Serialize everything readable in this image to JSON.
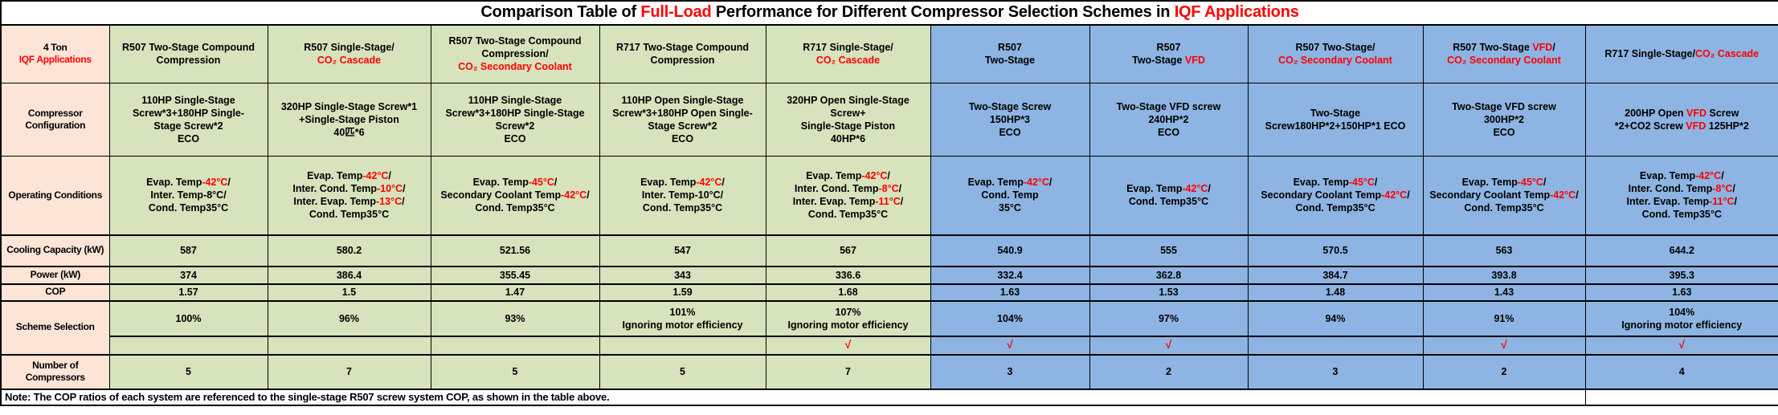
{
  "title": {
    "segments": [
      {
        "t": "Comparison Table of "
      },
      {
        "t": "Full-Load",
        "r": 1
      },
      {
        "t": " Performance for Different Compressor Selection Schemes in "
      },
      {
        "t": "IQF Applications",
        "r": 1
      }
    ]
  },
  "corner": {
    "segments": [
      {
        "t": "4 Ton\n"
      },
      {
        "t": "IQF Applications",
        "r": 1
      }
    ]
  },
  "row_labels": {
    "config": [
      {
        "t": "Compressor\nConfiguration"
      }
    ],
    "conditions": [
      {
        "t": "Operating Conditions"
      }
    ],
    "cooling": [
      {
        "t": "Cooling Capacity (kW)"
      }
    ],
    "power": [
      {
        "t": "Power (kW)"
      }
    ],
    "cop": [
      {
        "t": "COP"
      }
    ],
    "selection": [
      {
        "t": "Scheme Selection"
      }
    ],
    "compressors": [
      {
        "t": "Number of\nCompressors"
      }
    ]
  },
  "check_mark": "√",
  "colors": {
    "label_bg": "#fce4d6",
    "green_bg": "#d6e3bc",
    "blue_bg": "#8db4e2",
    "accent_red": "#ff0000",
    "border": "#000000"
  },
  "note": [
    {
      "t": "Note: The COP ratios of each system are referenced to the single-stage R507 screw system COP, as shown in the table above."
    }
  ],
  "columns": [
    {
      "theme": "green",
      "header": [
        {
          "t": "R507 Two-Stage Compound\nCompression"
        }
      ],
      "config": [
        {
          "t": "110HP Single-Stage\nScrew*3+180HP Single-\nStage Screw*2\nECO"
        }
      ],
      "conditions": [
        {
          "t": "Evap. Temp"
        },
        {
          "t": "-42°C",
          "r": 1
        },
        {
          "t": "/\nInter. Temp-8°C/\nCond. Temp35°C"
        }
      ],
      "cooling": [
        {
          "t": "587"
        }
      ],
      "power": [
        {
          "t": "374"
        }
      ],
      "cop": [
        {
          "t": "1.57"
        }
      ],
      "selection": [
        {
          "t": "100%"
        }
      ],
      "selected": false,
      "compressors": [
        {
          "t": "5"
        }
      ]
    },
    {
      "theme": "green",
      "header": [
        {
          "t": "R507 Single-Stage/\n"
        },
        {
          "t": "CO₂ Cascade",
          "r": 1
        }
      ],
      "config": [
        {
          "t": "320HP Single-Stage Screw*1\n+Single-Stage Piston\n40匹*6"
        }
      ],
      "conditions": [
        {
          "t": "Evap. Temp"
        },
        {
          "t": "-42°C",
          "r": 1
        },
        {
          "t": "/\nInter. Cond. Temp"
        },
        {
          "t": "-10°C",
          "r": 1
        },
        {
          "t": "/\nInter. Evap. Temp"
        },
        {
          "t": "-13°C",
          "r": 1
        },
        {
          "t": "/\nCond. Temp35°C"
        }
      ],
      "cooling": [
        {
          "t": "580.2"
        }
      ],
      "power": [
        {
          "t": "386.4"
        }
      ],
      "cop": [
        {
          "t": "1.5"
        }
      ],
      "selection": [
        {
          "t": "96%"
        }
      ],
      "selected": false,
      "compressors": [
        {
          "t": "7"
        }
      ]
    },
    {
      "theme": "green",
      "header": [
        {
          "t": "R507 Two-Stage Compound\nCompression/\n"
        },
        {
          "t": "CO₂ Secondary Coolant",
          "r": 1
        }
      ],
      "config": [
        {
          "t": "110HP Single-Stage\nScrew*3+180HP Single-Stage\nScrew*2\nECO"
        }
      ],
      "conditions": [
        {
          "t": "Evap. Temp"
        },
        {
          "t": "-45°C",
          "r": 1
        },
        {
          "t": "/\nSecondary Coolant Temp"
        },
        {
          "t": "-42°C",
          "r": 1
        },
        {
          "t": "/\nCond. Temp35°C"
        }
      ],
      "cooling": [
        {
          "t": "521.56"
        }
      ],
      "power": [
        {
          "t": "355.45"
        }
      ],
      "cop": [
        {
          "t": "1.47"
        }
      ],
      "selection": [
        {
          "t": "93%"
        }
      ],
      "selected": false,
      "compressors": [
        {
          "t": "5"
        }
      ]
    },
    {
      "theme": "green",
      "header": [
        {
          "t": "R717 Two-Stage Compound\nCompression"
        }
      ],
      "config": [
        {
          "t": "110HP Open Single-Stage\nScrew*3+180HP Open Single-\nStage Screw*2\nECO"
        }
      ],
      "conditions": [
        {
          "t": "Evap. Temp"
        },
        {
          "t": "-42°C",
          "r": 1
        },
        {
          "t": "/\nInter. Temp-10°C/\nCond. Temp35°C"
        }
      ],
      "cooling": [
        {
          "t": "547"
        }
      ],
      "power": [
        {
          "t": "343"
        }
      ],
      "cop": [
        {
          "t": "1.59"
        }
      ],
      "selection": [
        {
          "t": "101%\nIgnoring motor efficiency"
        }
      ],
      "selected": false,
      "compressors": [
        {
          "t": "5"
        }
      ]
    },
    {
      "theme": "green",
      "header": [
        {
          "t": "R717 Single-Stage/\n"
        },
        {
          "t": "CO₂ Cascade",
          "r": 1
        }
      ],
      "config": [
        {
          "t": "320HP Open Single-Stage\nScrew+\nSingle-Stage Piston\n40HP*6"
        }
      ],
      "conditions": [
        {
          "t": "Evap. Temp"
        },
        {
          "t": "-42°C",
          "r": 1
        },
        {
          "t": "/\nInter. Cond. Temp"
        },
        {
          "t": "-8°C",
          "r": 1
        },
        {
          "t": "/\nInter. Evap. Temp"
        },
        {
          "t": "-11°C",
          "r": 1
        },
        {
          "t": "/\nCond. Temp35°C"
        }
      ],
      "cooling": [
        {
          "t": "567"
        }
      ],
      "power": [
        {
          "t": "336.6"
        }
      ],
      "cop": [
        {
          "t": "1.68"
        }
      ],
      "selection": [
        {
          "t": "107%\nIgnoring motor efficiency"
        }
      ],
      "selected": true,
      "compressors": [
        {
          "t": "7"
        }
      ]
    },
    {
      "theme": "blue",
      "header": [
        {
          "t": "R507\nTwo-Stage"
        }
      ],
      "config": [
        {
          "t": "Two-Stage Screw\n150HP*3\nECO"
        }
      ],
      "conditions": [
        {
          "t": "Evap. Temp"
        },
        {
          "t": "-42°C",
          "r": 1
        },
        {
          "t": "/\nCond. Temp\n35°C"
        }
      ],
      "cooling": [
        {
          "t": "540.9"
        }
      ],
      "power": [
        {
          "t": "332.4"
        }
      ],
      "cop": [
        {
          "t": "1.63"
        }
      ],
      "selection": [
        {
          "t": "104%"
        }
      ],
      "selected": true,
      "compressors": [
        {
          "t": "3"
        }
      ]
    },
    {
      "theme": "blue",
      "header": [
        {
          "t": "R507\nTwo-Stage "
        },
        {
          "t": "VFD",
          "r": 1
        }
      ],
      "config": [
        {
          "t": "Two-Stage VFD screw\n240HP*2\nECO"
        }
      ],
      "conditions": [
        {
          "t": "Evap. Temp"
        },
        {
          "t": "-42°C",
          "r": 1
        },
        {
          "t": "/\nCond. Temp35°C"
        }
      ],
      "cooling": [
        {
          "t": "555"
        }
      ],
      "power": [
        {
          "t": "362.8"
        }
      ],
      "cop": [
        {
          "t": "1.53"
        }
      ],
      "selection": [
        {
          "t": "97%"
        }
      ],
      "selected": true,
      "compressors": [
        {
          "t": "2"
        }
      ]
    },
    {
      "theme": "blue",
      "header": [
        {
          "t": "R507 Two-Stage/\n"
        },
        {
          "t": "CO₂ Secondary Coolant",
          "r": 1
        }
      ],
      "config": [
        {
          "t": "Two-Stage\nScrew180HP*2+150HP*1 ECO"
        }
      ],
      "conditions": [
        {
          "t": "Evap. Temp"
        },
        {
          "t": "-45°C",
          "r": 1
        },
        {
          "t": "/\nSecondary Coolant Temp"
        },
        {
          "t": "-42°C",
          "r": 1
        },
        {
          "t": "/\nCond. Temp35°C"
        }
      ],
      "cooling": [
        {
          "t": "570.5"
        }
      ],
      "power": [
        {
          "t": "384.7"
        }
      ],
      "cop": [
        {
          "t": "1.48"
        }
      ],
      "selection": [
        {
          "t": "94%"
        }
      ],
      "selected": false,
      "compressors": [
        {
          "t": "3"
        }
      ]
    },
    {
      "theme": "blue",
      "header": [
        {
          "t": "R507 Two-Stage "
        },
        {
          "t": "VFD",
          "r": 1
        },
        {
          "t": "/\n"
        },
        {
          "t": "CO₂ Secondary Coolant",
          "r": 1
        }
      ],
      "config": [
        {
          "t": "Two-Stage VFD screw\n300HP*2\nECO"
        }
      ],
      "conditions": [
        {
          "t": "Evap. Temp"
        },
        {
          "t": "-45°C",
          "r": 1
        },
        {
          "t": "/\nSecondary Coolant Temp"
        },
        {
          "t": "-42°C",
          "r": 1
        },
        {
          "t": "/\nCond. Temp35°C"
        }
      ],
      "cooling": [
        {
          "t": "563"
        }
      ],
      "power": [
        {
          "t": "393.8"
        }
      ],
      "cop": [
        {
          "t": "1.43"
        }
      ],
      "selection": [
        {
          "t": "91%"
        }
      ],
      "selected": true,
      "compressors": [
        {
          "t": "2"
        }
      ]
    },
    {
      "theme": "blue",
      "header": [
        {
          "t": "R717 Single-Stage/"
        },
        {
          "t": "CO₂ Cascade",
          "r": 1
        }
      ],
      "config": [
        {
          "t": "200HP Open "
        },
        {
          "t": "VFD",
          "r": 1
        },
        {
          "t": " Screw\n*2+CO2 Screw "
        },
        {
          "t": "VFD",
          "r": 1
        },
        {
          "t": " 125HP*2"
        }
      ],
      "conditions": [
        {
          "t": "Evap. Temp"
        },
        {
          "t": "-42°C",
          "r": 1
        },
        {
          "t": "/\nInter. Cond. Temp"
        },
        {
          "t": "-8°C",
          "r": 1
        },
        {
          "t": "/\nInter. Evap. Temp"
        },
        {
          "t": "-11°C",
          "r": 1
        },
        {
          "t": "/\nCond. Temp35°C"
        }
      ],
      "cooling": [
        {
          "t": "644.2"
        }
      ],
      "power": [
        {
          "t": "395.3"
        }
      ],
      "cop": [
        {
          "t": "1.63"
        }
      ],
      "selection": [
        {
          "t": "104%\nIgnoring motor efficiency"
        }
      ],
      "selected": true,
      "compressors": [
        {
          "t": "4"
        }
      ]
    }
  ]
}
